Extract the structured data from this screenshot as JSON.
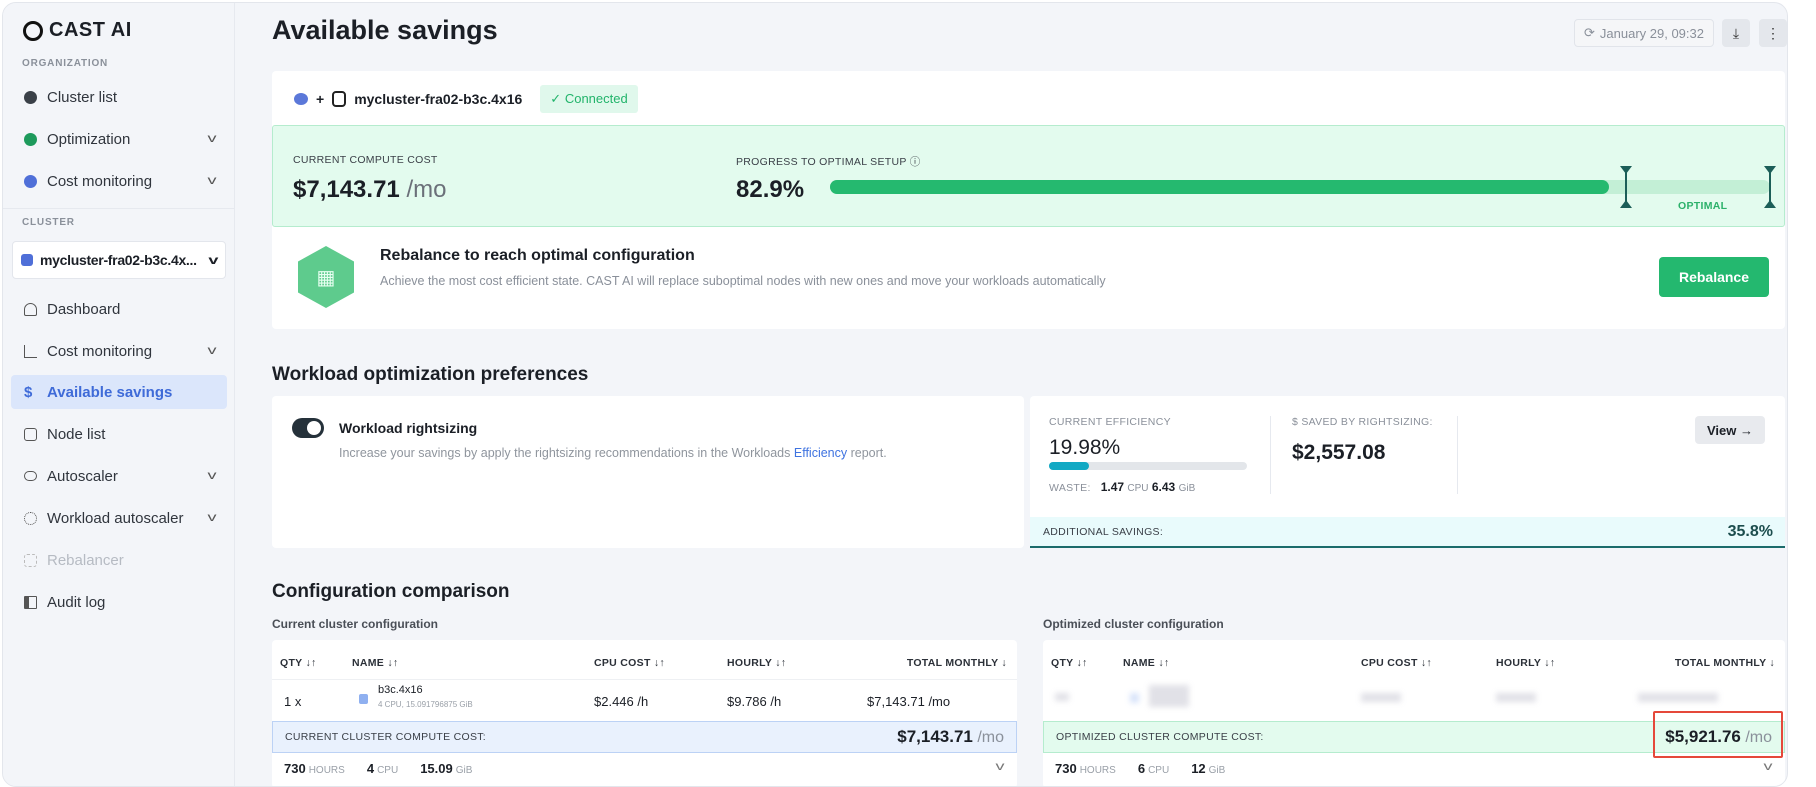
{
  "app": {
    "logo": "CAST AI"
  },
  "sidebar": {
    "org_label": "ORGANIZATION",
    "org_items": [
      {
        "label": "Cluster list"
      },
      {
        "label": "Optimization"
      },
      {
        "label": "Cost monitoring"
      }
    ],
    "cluster_label": "CLUSTER",
    "cluster_selector": "mycluster-fra02-b3c.4x...",
    "cluster_items": [
      {
        "label": "Dashboard"
      },
      {
        "label": "Cost monitoring"
      },
      {
        "label": "Available savings"
      },
      {
        "label": "Node list"
      },
      {
        "label": "Autoscaler"
      },
      {
        "label": "Workload autoscaler"
      },
      {
        "label": "Rebalancer"
      },
      {
        "label": "Audit log"
      }
    ]
  },
  "header": {
    "title": "Available savings",
    "refresh_time": "January 29, 09:32"
  },
  "cluster": {
    "plus": "+",
    "name": "mycluster-fra02-b3c.4x16",
    "status": "Connected"
  },
  "cost": {
    "label": "CURRENT COMPUTE COST",
    "value": "$7,143.71",
    "unit": "/mo"
  },
  "progress": {
    "label": "PROGRESS TO OPTIMAL SETUP",
    "info": "ⓘ",
    "value": "82.9%",
    "percent": 82.9,
    "optimal_label": "OPTIMAL",
    "colors": {
      "fill": "#25b96f",
      "track": "#c3efd6"
    }
  },
  "rebalance": {
    "title": "Rebalance to reach optimal configuration",
    "description": "Achieve the most cost efficient state. CAST AI will replace suboptimal nodes with new ones and move your workloads automatically",
    "button": "Rebalance"
  },
  "workload": {
    "heading": "Workload optimization preferences",
    "toggle_title": "Workload rightsizing",
    "toggle_on": true,
    "desc_before": "Increase your savings by apply the rightsizing recommendations in the Workloads ",
    "desc_link": "Efficiency",
    "desc_after": " report.",
    "efficiency_label": "CURRENT EFFICIENCY",
    "efficiency_value": "19.98%",
    "efficiency_percent": 19.98,
    "waste_label": "WASTE:",
    "waste_cpu": "1.47",
    "cpu_unit": "CPU",
    "waste_mem": "6.43",
    "mem_unit": "GiB",
    "saved_label": "$ SAVED BY RIGHTSIZING:",
    "saved_value": "$2,557.08",
    "view_button": "View →",
    "additional_label": "ADDITIONAL SAVINGS:",
    "additional_value": "35.8%"
  },
  "comparison": {
    "heading": "Configuration comparison",
    "columns": [
      "QTY ↓↑",
      "NAME ↓↑",
      "CPU COST ↓↑",
      "HOURLY ↓↑",
      "TOTAL MONTHLY ↓"
    ],
    "current": {
      "title": "Current cluster configuration",
      "row": {
        "qty": "1 x",
        "name": "b3c.4x16",
        "spec": "4 CPU, 15.091796875 GiB",
        "cpu_cost": "$2.446 /h",
        "hourly": "$9.786 /h",
        "monthly": "$7,143.71 /mo"
      },
      "summary_label": "CURRENT CLUSTER COMPUTE COST:",
      "summary_value": "$7,143.71",
      "summary_unit": "/mo",
      "hours": "730",
      "hours_unit": "HOURS",
      "cpu": "4",
      "cpu_unit": "CPU",
      "mem": "15.09",
      "mem_unit": "GiB"
    },
    "optimized": {
      "title": "Optimized cluster configuration",
      "summary_label": "OPTIMIZED CLUSTER COMPUTE COST:",
      "summary_value": "$5,921.76",
      "summary_unit": "/mo",
      "hours": "730",
      "hours_unit": "HOURS",
      "cpu": "6",
      "cpu_unit": "CPU",
      "mem": "12",
      "mem_unit": "GiB"
    }
  }
}
